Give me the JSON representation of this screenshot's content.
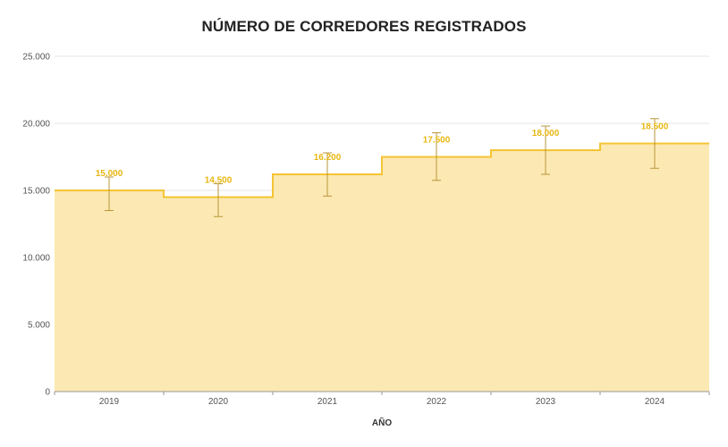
{
  "chart_data": {
    "type": "area",
    "title": "NÚMERO DE CORREDORES REGISTRADOS",
    "xlabel": "AÑO",
    "ylabel": "",
    "categories": [
      "2019",
      "2020",
      "2021",
      "2022",
      "2023",
      "2024"
    ],
    "series": [
      {
        "values": [
          15000,
          14500,
          16200,
          17500,
          18000,
          18500
        ],
        "labels": [
          "15.000",
          "14.500",
          "16.200",
          "17.500",
          "18.000",
          "18.500"
        ],
        "error_low": [
          13500,
          13050,
          14580,
          15750,
          16200,
          16650
        ],
        "error_high": [
          16000,
          15500,
          17800,
          19300,
          19800,
          20350
        ]
      }
    ],
    "step": true,
    "ylim": [
      0,
      25000
    ],
    "yticks": [
      0,
      5000,
      10000,
      15000,
      20000,
      25000
    ],
    "ytick_labels": [
      "0",
      "5.000",
      "10.000",
      "15.000",
      "20.000",
      "25.000"
    ],
    "grid": true,
    "colors": {
      "fill": "#fce8b2",
      "line": "#f4c433",
      "error_bar": "#b8963a",
      "label": "#e8b710",
      "grid": "#e6e6e6",
      "axis": "#999999"
    }
  }
}
